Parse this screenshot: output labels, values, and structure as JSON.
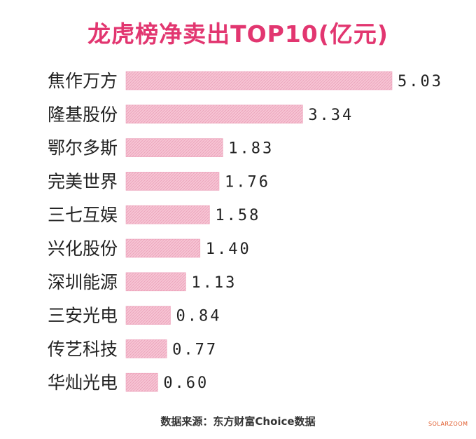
{
  "colors": {
    "title": "#e23670",
    "bar": "#f7c4d4",
    "bar_hatch": "#e9a0b8",
    "bar_edge": "#ec9fb8"
  },
  "chart_data": {
    "type": "bar",
    "orientation": "horizontal",
    "title": "龙虎榜净卖出TOP10(亿元)",
    "categories": [
      "焦作万方",
      "隆基股份",
      "鄂尔多斯",
      "完美世界",
      "三七互娱",
      "兴化股份",
      "深圳能源",
      "三安光电",
      "传艺科技",
      "华灿光电"
    ],
    "values": [
      5.03,
      3.34,
      1.83,
      1.76,
      1.58,
      1.4,
      1.13,
      0.84,
      0.77,
      0.6
    ],
    "value_labels": [
      "5.03",
      "3.34",
      "1.83",
      "1.76",
      "1.58",
      "1.40",
      "1.13",
      "0.84",
      "0.77",
      "0.60"
    ],
    "xlim": [
      0,
      5.03
    ],
    "grid": false,
    "legend": "none"
  },
  "source": "数据来源：东方财富Choice数据",
  "watermark": "SOLARZOOM"
}
